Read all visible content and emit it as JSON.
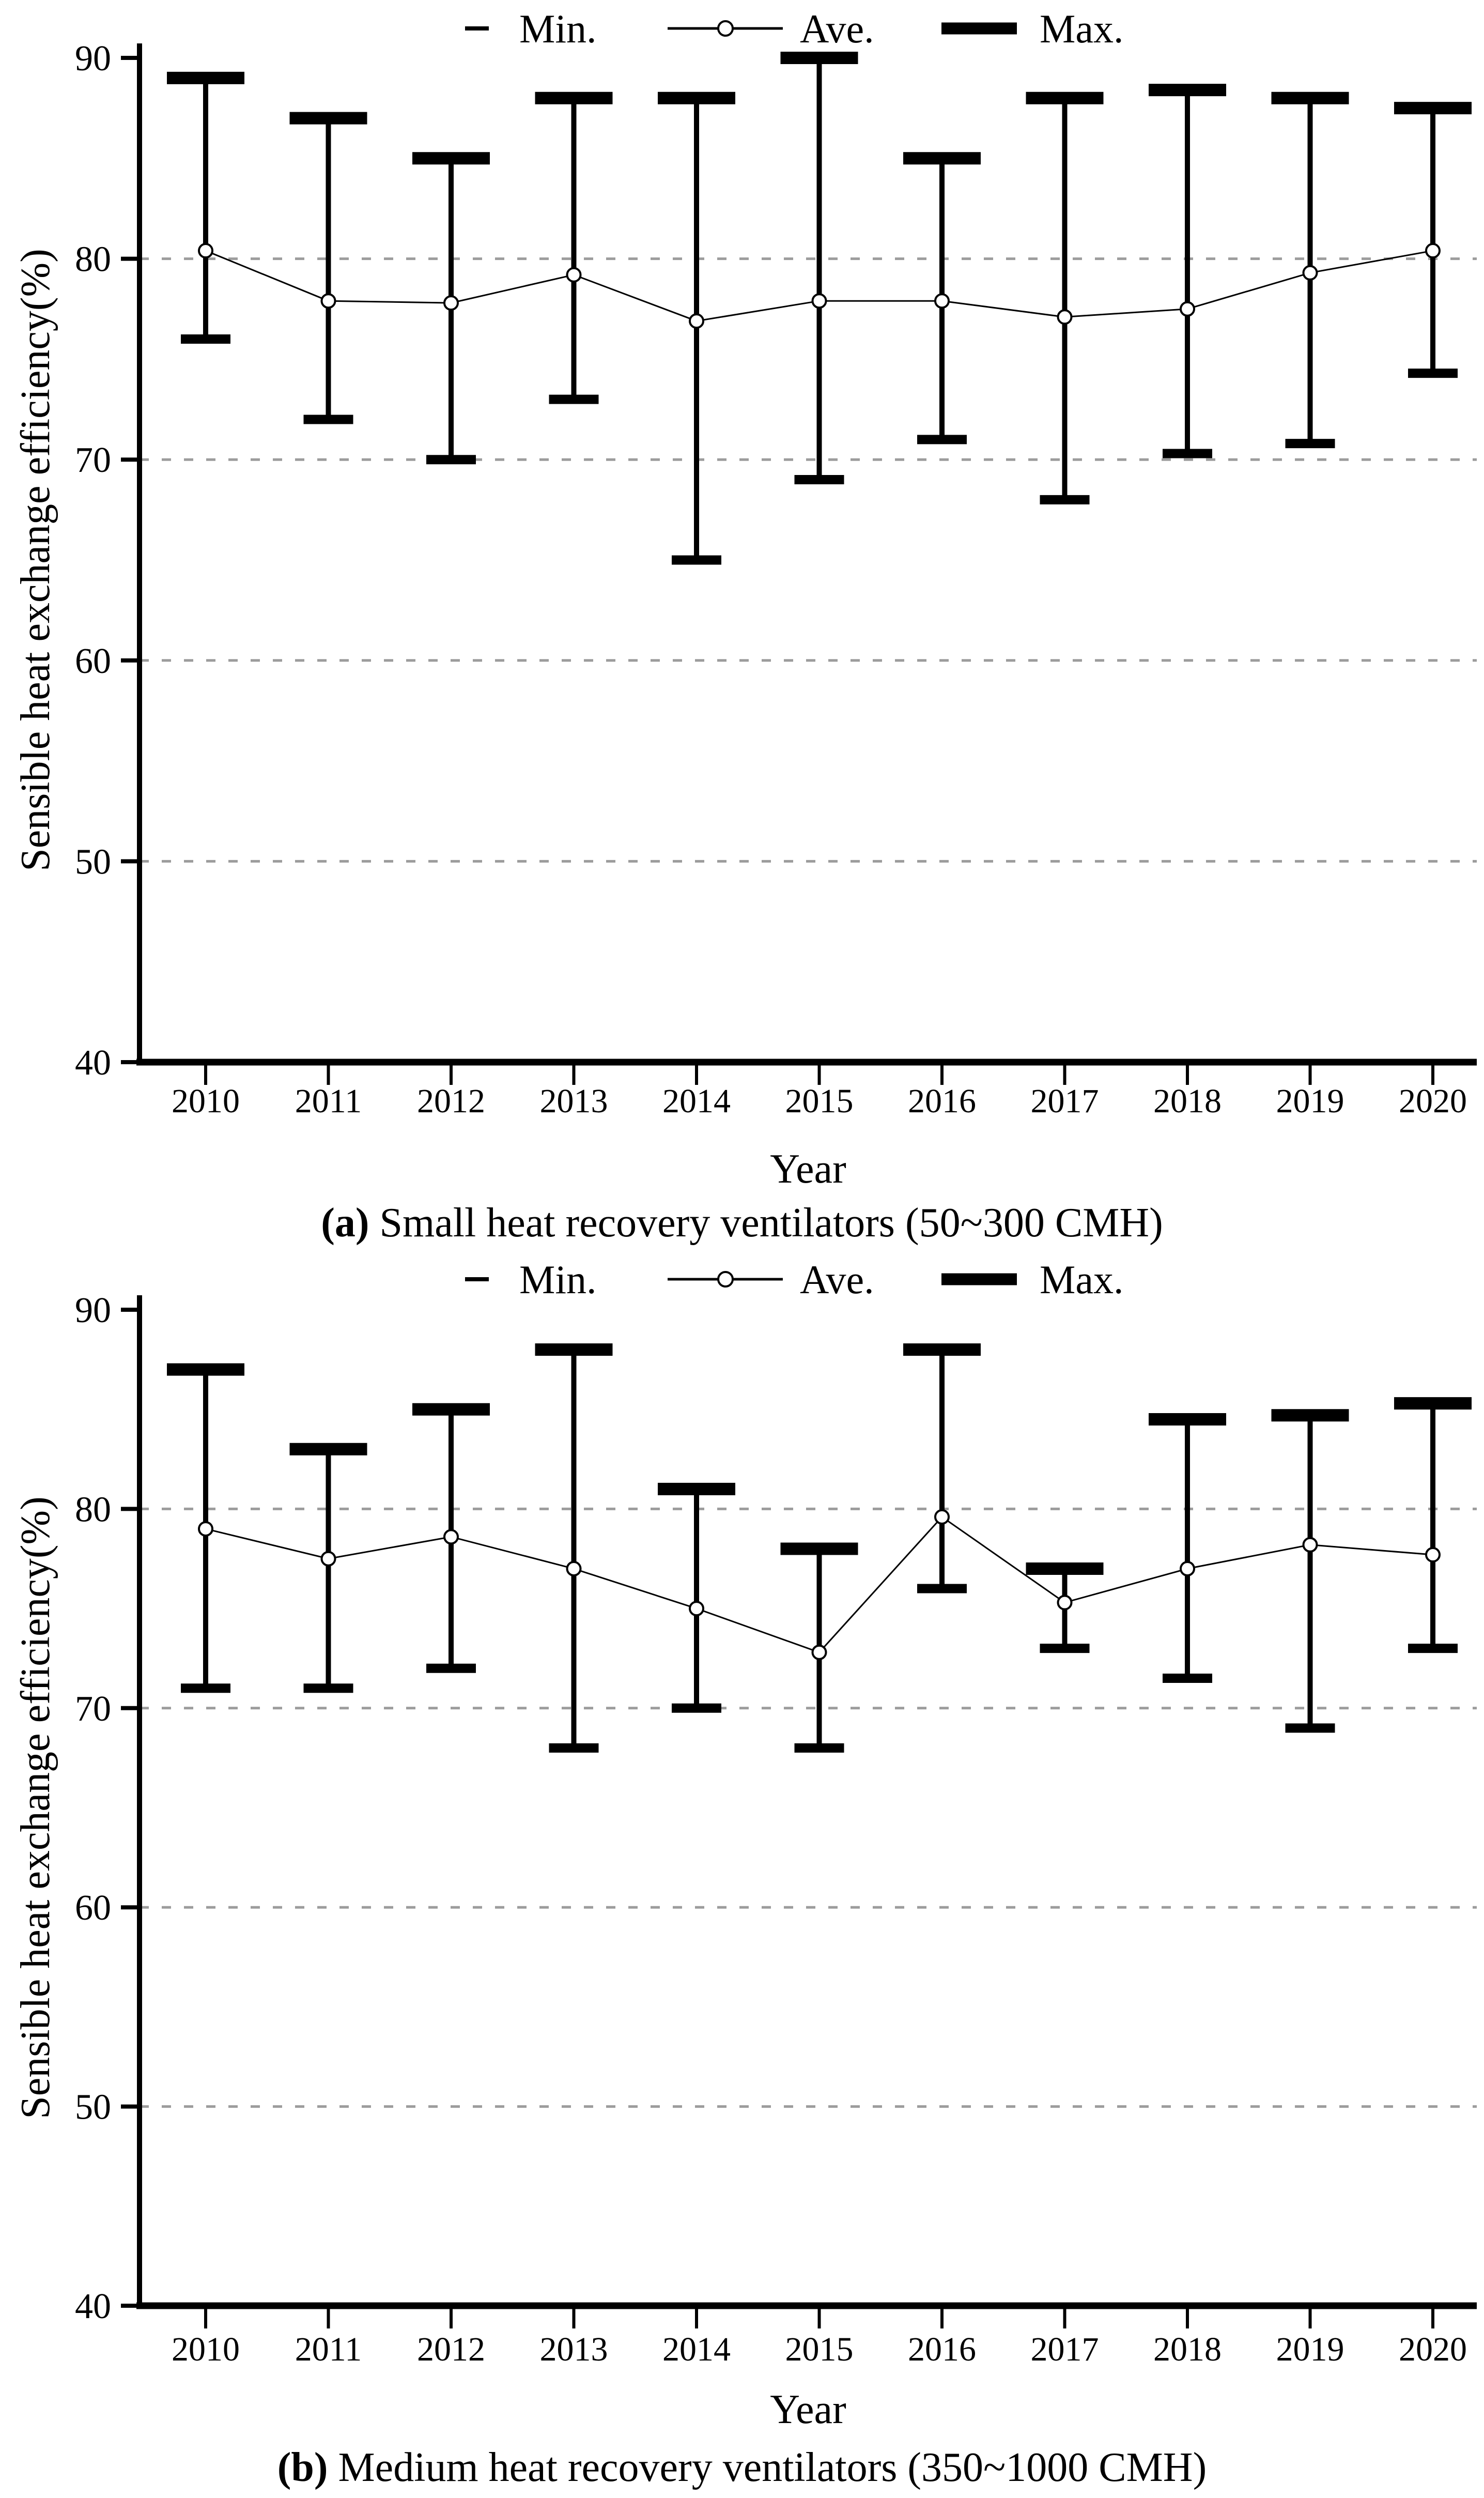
{
  "page": {
    "background": "#ffffff"
  },
  "colors": {
    "ink": "#000000",
    "grid": "#9c9c9c",
    "marker_fill": "#ffffff"
  },
  "chart_data": [
    {
      "type": "line",
      "panel": "a",
      "caption": {
        "prefix": "(a)",
        "text": " Small heat recovery ventilators (50~300 CMH)"
      },
      "xlabel": "Year",
      "ylabel": "Sensible heat exchange efficiency(%)",
      "categories": [
        "2010",
        "2011",
        "2012",
        "2013",
        "2014",
        "2015",
        "2016",
        "2017",
        "2018",
        "2019",
        "2020"
      ],
      "series": [
        {
          "name": "Min.",
          "values": [
            76,
            72,
            70,
            73,
            65,
            69,
            71,
            68,
            70.3,
            70.8,
            74.3
          ]
        },
        {
          "name": "Ave.",
          "values": [
            80.4,
            77.9,
            77.8,
            79.2,
            76.9,
            77.9,
            77.9,
            77.1,
            77.5,
            79.3,
            80.4
          ]
        },
        {
          "name": "Max.",
          "values": [
            89,
            87,
            85,
            88,
            88,
            90,
            85,
            88,
            88.4,
            88,
            87.5
          ]
        }
      ],
      "ylim": [
        40,
        90
      ],
      "yticks": [
        "90",
        "80",
        "70",
        "60",
        "50",
        "40"
      ],
      "grid_values": [
        80,
        70,
        60,
        50
      ],
      "grid": "horizontal-dashed",
      "legend_position": "top-center",
      "legend_labels": [
        "Min.",
        "Ave.",
        "Max."
      ]
    },
    {
      "type": "line",
      "panel": "b",
      "caption": {
        "prefix": "(b)",
        "text": " Medium heat recovery ventilators (350~1000 CMH)"
      },
      "xlabel": "Year",
      "ylabel": "Sensible heat exchange efficiency(%)",
      "categories": [
        "2010",
        "2011",
        "2012",
        "2013",
        "2014",
        "2015",
        "2016",
        "2017",
        "2018",
        "2019",
        "2020"
      ],
      "series": [
        {
          "name": "Min.",
          "values": [
            71,
            71,
            72,
            68,
            70,
            68,
            76,
            73,
            71.5,
            69,
            73
          ]
        },
        {
          "name": "Ave.",
          "values": [
            79.0,
            77.5,
            78.6,
            77.0,
            75.0,
            72.8,
            79.6,
            75.3,
            77.0,
            78.2,
            77.7
          ]
        },
        {
          "name": "Max.",
          "values": [
            87,
            83,
            85,
            88,
            81,
            78,
            88,
            77,
            84.5,
            84.7,
            85.3
          ]
        }
      ],
      "ylim": [
        40,
        90
      ],
      "yticks": [
        "90",
        "80",
        "70",
        "60",
        "50",
        "40"
      ],
      "grid_values": [
        80,
        70,
        60,
        50
      ],
      "grid": "horizontal-dashed",
      "legend_position": "top-center",
      "legend_labels": [
        "Min.",
        "Ave.",
        "Max."
      ]
    }
  ]
}
